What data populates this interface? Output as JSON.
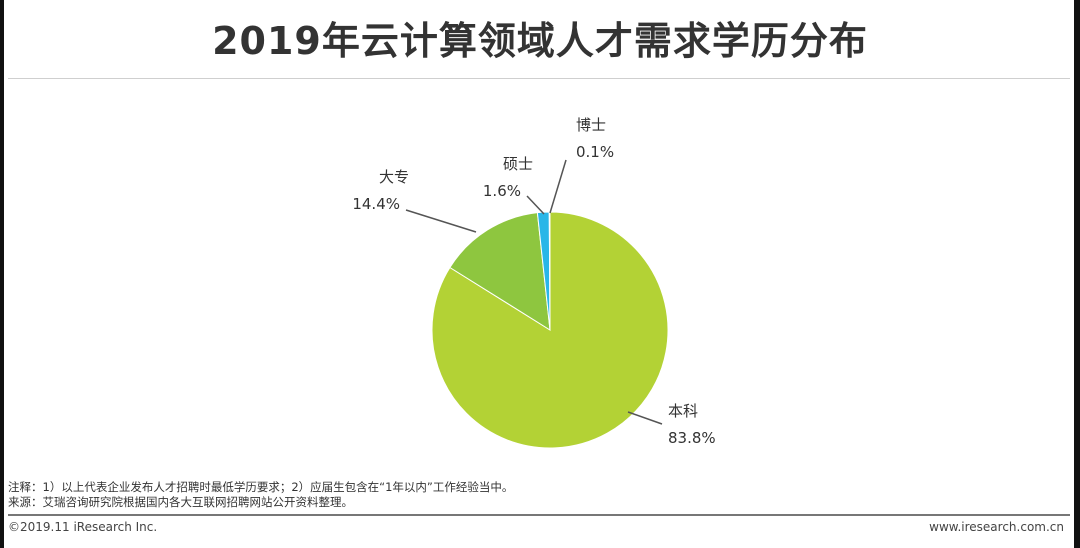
{
  "title": "2019年云计算领域人才需求学历分布",
  "chart_data": {
    "type": "pie",
    "slices": [
      {
        "label": "本科",
        "value": 83.8,
        "display": "83.8%",
        "color": "#b3d235"
      },
      {
        "label": "大专",
        "value": 14.4,
        "display": "14.4%",
        "color": "#8ec63f"
      },
      {
        "label": "硕士",
        "value": 1.6,
        "display": "1.6%",
        "color": "#29b6e8"
      },
      {
        "label": "博士",
        "value": 0.1,
        "display": "0.1%",
        "color": "#1c7fc4"
      }
    ]
  },
  "notes": {
    "line1": "注释：1）以上代表企业发布人才招聘时最低学历要求；2）应届生包含在“1年以内”工作经验当中。",
    "line2": "来源：艾瑞咨询研究院根据国内各大互联网招聘网站公开资料整理。"
  },
  "footer": {
    "copyright": "©2019.11 iResearch Inc.",
    "website": "www.iresearch.com.cn"
  }
}
